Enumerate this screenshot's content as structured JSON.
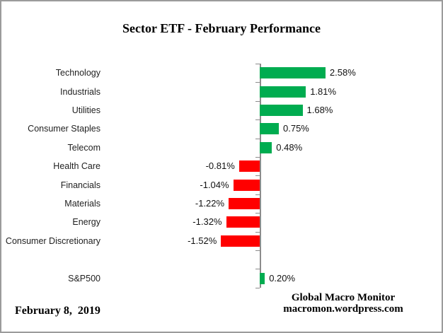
{
  "title": "Sector ETF - February Performance",
  "footer": {
    "date": "February 8,  2019",
    "credit_line1": "Global Macro Monitor",
    "credit_line2": "macromon.wordpress.com"
  },
  "colors": {
    "positive_bar": "#00AC50",
    "negative_bar": "#FF0000",
    "axis": "#8C8C8C",
    "label_text": "#1F1F1F"
  },
  "chart_data": {
    "type": "bar",
    "orientation": "horizontal",
    "title": "Sector ETF - February Performance",
    "xlabel": "",
    "ylabel": "",
    "grid": false,
    "legend": "none",
    "xlim": [
      -2.0,
      3.0
    ],
    "value_unit": "percent",
    "categories": [
      "Technology",
      "Industrials",
      "Utilities",
      "Consumer Staples",
      "Telecom",
      "Health Care",
      "Financials",
      "Materials",
      "Energy",
      "Consumer Discretionary",
      "",
      "S&P500"
    ],
    "values": [
      2.58,
      1.81,
      1.68,
      0.75,
      0.48,
      -0.81,
      -1.04,
      -1.22,
      -1.32,
      -1.52,
      null,
      0.2
    ],
    "value_labels": [
      "2.58%",
      "1.81%",
      "1.68%",
      "0.75%",
      "0.48%",
      "-0.81%",
      "-1.04%",
      "-1.22%",
      "-1.32%",
      "-1.52%",
      "",
      "0.20%"
    ]
  }
}
